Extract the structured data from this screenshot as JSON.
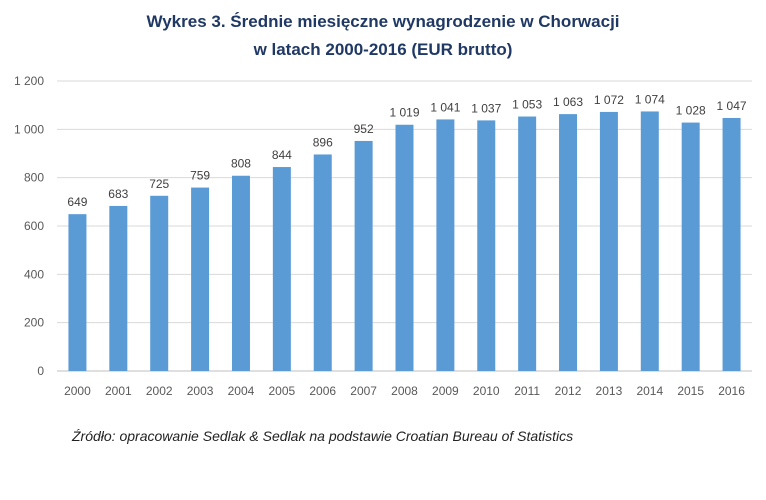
{
  "chart_data": {
    "type": "bar",
    "title": "Wykres 3. Średnie miesięczne wynagrodzenie w Chorwacji",
    "subtitle": "w latach 2000-2016 (EUR brutto)",
    "categories": [
      "2000",
      "2001",
      "2002",
      "2003",
      "2004",
      "2005",
      "2006",
      "2007",
      "2008",
      "2009",
      "2010",
      "2011",
      "2012",
      "2013",
      "2014",
      "2015",
      "2016"
    ],
    "values": [
      649,
      683,
      725,
      759,
      808,
      844,
      896,
      952,
      1019,
      1041,
      1037,
      1053,
      1063,
      1072,
      1074,
      1028,
      1047
    ],
    "data_labels": [
      "649",
      "683",
      "725",
      "759",
      "808",
      "844",
      "896",
      "952",
      "1 019",
      "1 041",
      "1 037",
      "1 053",
      "1 063",
      "1 072",
      "1 074",
      "1 028",
      "1 047"
    ],
    "yticks": [
      0,
      200,
      400,
      600,
      800,
      1000,
      1200
    ],
    "ytick_labels": [
      "0",
      "200",
      "400",
      "600",
      "800",
      "1 000",
      "1 200"
    ],
    "ylim": [
      0,
      1200
    ],
    "xlabel": "",
    "ylabel": "",
    "grid": true,
    "legend": "none",
    "bar_color": "#5b9bd5",
    "title_color": "#1f3864"
  },
  "source": "Źródło: opracowanie Sedlak & Sedlak na podstawie Croatian Bureau of Statistics"
}
